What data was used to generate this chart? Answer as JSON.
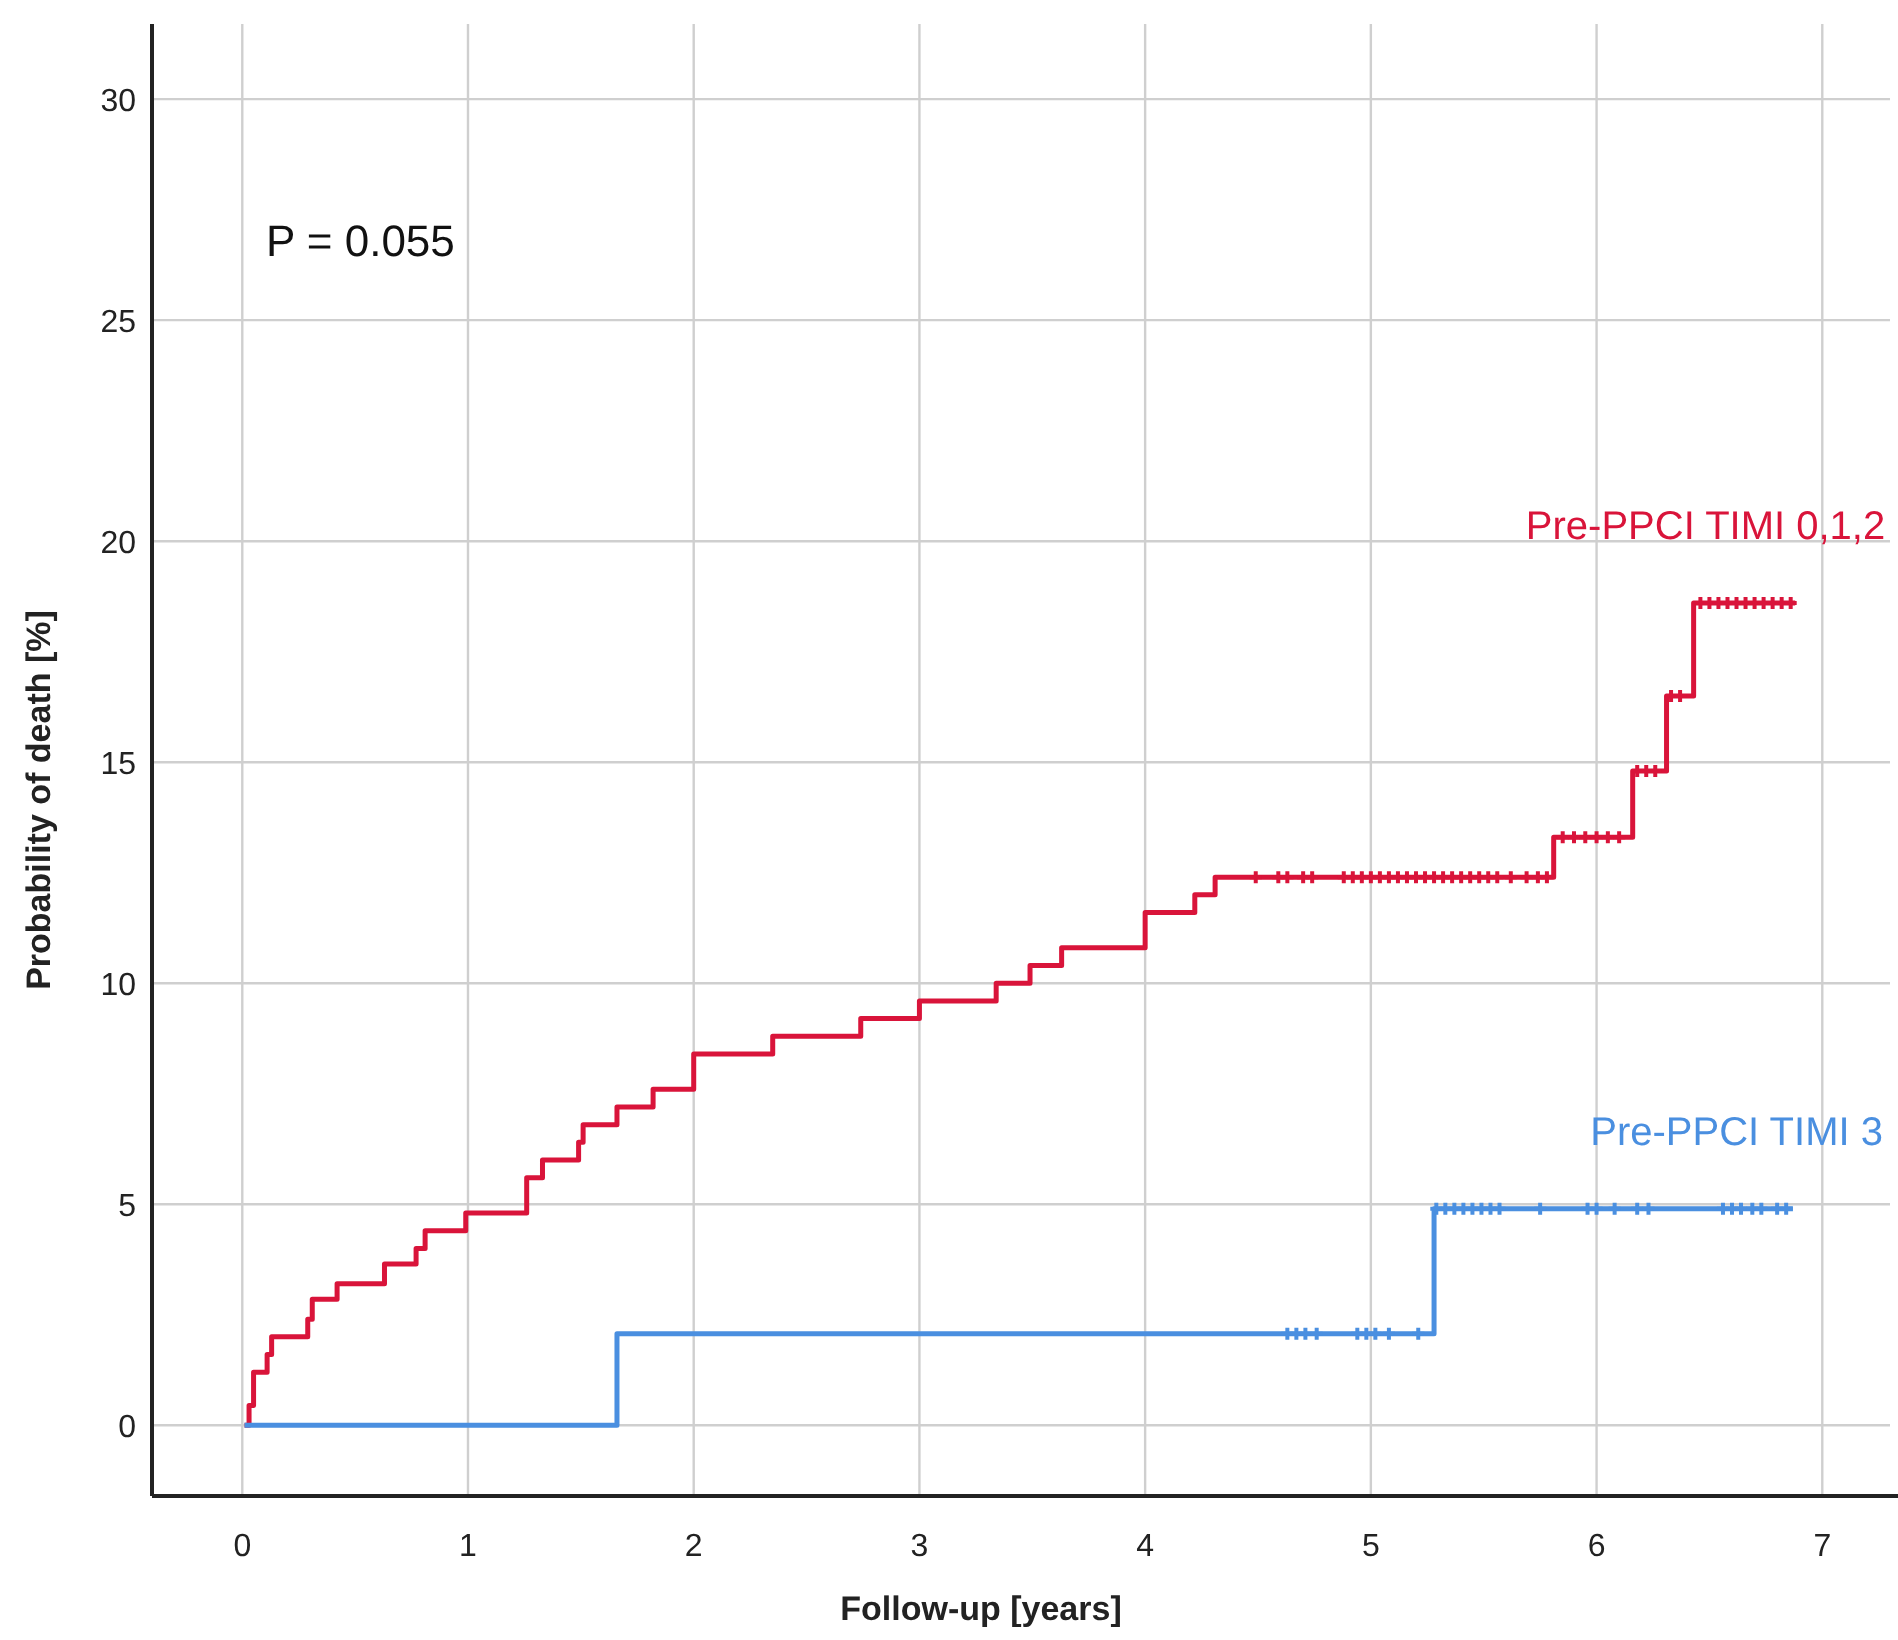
{
  "chart_data": {
    "type": "step",
    "xlabel": "Follow-up [years]",
    "ylabel": "Probability of death [%]",
    "xlim": [
      -0.4,
      7.3
    ],
    "xticks": [
      0,
      1,
      2,
      3,
      4,
      5,
      6,
      7
    ],
    "ylim": [
      -1.6,
      31.7
    ],
    "yticks": [
      0,
      5,
      10,
      15,
      20,
      25,
      30
    ],
    "grid": true,
    "annotations": [
      "P = 0.055"
    ],
    "series": [
      {
        "name": "Pre-PPCI TIMI 0,1,2",
        "color": "#d9143a",
        "x": [
          0.01,
          0.03,
          0.05,
          0.11,
          0.13,
          0.29,
          0.31,
          0.42,
          0.63,
          0.77,
          0.81,
          0.99,
          1.26,
          1.33,
          1.49,
          1.51,
          1.66,
          1.82,
          2.0,
          2.35,
          2.74,
          3.0,
          3.34,
          3.49,
          3.63,
          4.0,
          4.22,
          4.31,
          5.81,
          6.16,
          6.31,
          6.43,
          6.88
        ],
        "values": [
          0,
          0.45,
          1.2,
          1.6,
          2.0,
          2.4,
          2.85,
          3.2,
          3.65,
          4.0,
          4.4,
          4.8,
          5.6,
          6.0,
          6.4,
          6.8,
          7.2,
          7.6,
          8.4,
          8.8,
          9.2,
          9.6,
          10.0,
          10.4,
          10.8,
          11.6,
          12.0,
          12.4,
          13.3,
          14.8,
          16.5,
          18.6,
          18.6
        ]
      },
      {
        "name": "Pre-PPCI TIMI 3",
        "color": "#4a8fe0",
        "x": [
          0.01,
          1.66,
          5.28,
          6.87
        ],
        "values": [
          0,
          2.07,
          4.9,
          4.9
        ]
      },
      {
        "color": "#d9143a",
        "type": "scatter",
        "marker": "cross",
        "x": [
          4.49,
          4.59,
          4.63,
          4.7,
          4.74,
          4.88,
          4.92,
          4.96,
          5.0,
          5.04,
          5.08,
          5.12,
          5.16,
          5.2,
          5.24,
          5.28,
          5.32,
          5.36,
          5.4,
          5.44,
          5.48,
          5.52,
          5.56,
          5.62,
          5.69,
          5.74,
          5.78,
          5.85,
          5.9,
          5.95,
          6.0,
          6.05,
          6.1,
          6.18,
          6.22,
          6.26,
          6.33,
          6.37,
          6.46,
          6.5,
          6.54,
          6.58,
          6.62,
          6.66,
          6.7,
          6.74,
          6.78,
          6.82,
          6.86
        ],
        "values": [
          12.4,
          12.4,
          12.4,
          12.4,
          12.4,
          12.4,
          12.4,
          12.4,
          12.4,
          12.4,
          12.4,
          12.4,
          12.4,
          12.4,
          12.4,
          12.4,
          12.4,
          12.4,
          12.4,
          12.4,
          12.4,
          12.4,
          12.4,
          12.4,
          12.4,
          12.4,
          12.4,
          13.3,
          13.3,
          13.3,
          13.3,
          13.3,
          13.3,
          14.8,
          14.8,
          14.8,
          16.5,
          16.5,
          18.6,
          18.6,
          18.6,
          18.6,
          18.6,
          18.6,
          18.6,
          18.6,
          18.6,
          18.6,
          18.6
        ]
      },
      {
        "color": "#4a8fe0",
        "type": "scatter",
        "marker": "cross",
        "x": [
          4.63,
          4.67,
          4.71,
          4.76,
          4.94,
          4.98,
          5.02,
          5.08,
          5.21,
          5.29,
          5.33,
          5.37,
          5.41,
          5.45,
          5.49,
          5.53,
          5.57,
          5.75,
          5.96,
          6.0,
          6.08,
          6.18,
          6.23,
          6.56,
          6.6,
          6.64,
          6.69,
          6.73,
          6.8,
          6.84
        ],
        "values": [
          2.07,
          2.07,
          2.07,
          2.07,
          2.07,
          2.07,
          2.07,
          2.07,
          2.07,
          4.9,
          4.9,
          4.9,
          4.9,
          4.9,
          4.9,
          4.9,
          4.9,
          4.9,
          4.9,
          4.9,
          4.9,
          4.9,
          4.9,
          4.9,
          4.9,
          4.9,
          4.9,
          4.9,
          4.9,
          4.9
        ]
      }
    ]
  }
}
